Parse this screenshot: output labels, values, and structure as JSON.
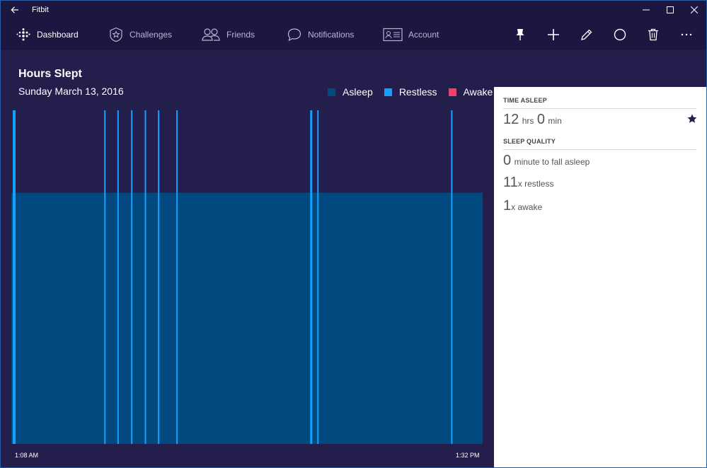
{
  "titlebar": {
    "title": "Fitbit"
  },
  "nav": {
    "items": [
      {
        "label": "Dashboard",
        "icon": "fitbit-dots-icon"
      },
      {
        "label": "Challenges",
        "icon": "star-badge-icon"
      },
      {
        "label": "Friends",
        "icon": "friends-icon"
      },
      {
        "label": "Notifications",
        "icon": "speech-bubble-icon"
      },
      {
        "label": "Account",
        "icon": "id-card-icon"
      }
    ],
    "actions": [
      "pin-icon",
      "add-icon",
      "edit-icon",
      "moon-icon",
      "trash-icon",
      "more-icon"
    ]
  },
  "chart_data": {
    "type": "bar",
    "title": "Hours Slept",
    "subtitle": "Sunday March 13, 2016",
    "legend": [
      {
        "name": "Asleep",
        "color": "#004a7f"
      },
      {
        "name": "Restless",
        "color": "#14a0ff"
      },
      {
        "name": "Awake",
        "color": "#e8426e"
      }
    ],
    "x_start_label": "1:08 AM",
    "x_end_label": "1:32 PM",
    "x_range_fraction": [
      0,
      1
    ],
    "asleep_fraction": 0.753,
    "restless_fraction": 1.0,
    "restless_events_position_fraction": [
      0.003,
      0.197,
      0.225,
      0.254,
      0.283,
      0.311,
      0.35,
      0.634,
      0.649,
      0.933
    ]
  },
  "panel": {
    "time_asleep_title": "TIME ASLEEP",
    "hours_value": "12",
    "hours_unit": "hrs",
    "minutes_value": "0",
    "minutes_unit": "min",
    "sleep_quality_title": "SLEEP QUALITY",
    "fall_asleep_value": "0",
    "fall_asleep_label": "minute to fall asleep",
    "restless_value": "11",
    "restless_label": "x restless",
    "awake_value": "1",
    "awake_label": "x awake"
  },
  "colors": {
    "background": "#231e4b",
    "bar_asleep": "#004a7f",
    "bar_restless": "#14a0ff",
    "panel_bg": "#ffffff"
  }
}
